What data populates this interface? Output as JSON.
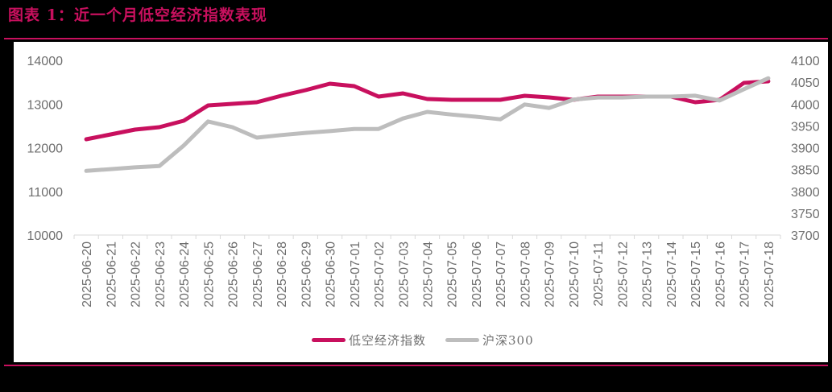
{
  "title": "图表 1：近一个月低空经济指数表现",
  "colors": {
    "accent": "#C8105E",
    "series_primary": "#C8105E",
    "series_secondary": "#BDBDBD",
    "axis_text": "#6E6E6E",
    "axis_line": "#D9D9D9"
  },
  "legend": {
    "items": [
      {
        "label": "低空经济指数",
        "color": "#C8105E"
      },
      {
        "label": "沪深300",
        "color": "#BDBDBD"
      }
    ]
  },
  "chart_data": {
    "type": "line",
    "title": "图表 1：近一个月低空经济指数表现",
    "xlabel": "",
    "ylabel": "",
    "y2label": "",
    "legend_position": "bottom",
    "grid": false,
    "ylim": [
      10000,
      14000
    ],
    "y_ticks": [
      10000,
      11000,
      12000,
      13000,
      14000
    ],
    "y2lim": [
      3700,
      4100
    ],
    "y2_ticks": [
      3700,
      3750,
      3800,
      3850,
      3900,
      3950,
      4000,
      4050,
      4100
    ],
    "categories": [
      "2025-06-20",
      "2025-06-21",
      "2025-06-22",
      "2025-06-23",
      "2025-06-24",
      "2025-06-25",
      "2025-06-26",
      "2025-06-27",
      "2025-06-28",
      "2025-06-29",
      "2025-06-30",
      "2025-07-01",
      "2025-07-02",
      "2025-07-03",
      "2025-07-04",
      "2025-07-05",
      "2025-07-06",
      "2025-07-07",
      "2025-07-08",
      "2025-07-09",
      "2025-07-10",
      "2025-07-11",
      "2025-07-12",
      "2025-07-13",
      "2025-07-14",
      "2025-07-15",
      "2025-07-16",
      "2025-07-17",
      "2025-07-18"
    ],
    "series": [
      {
        "name": "低空经济指数",
        "axis": "left",
        "color": "#C8105E",
        "values": [
          12193,
          12304,
          12415,
          12470,
          12617,
          12968,
          13005,
          13041,
          13189,
          13318,
          13465,
          13410,
          13170,
          13244,
          13115,
          13097,
          13097,
          13097,
          13189,
          13152,
          13097,
          13170,
          13170,
          13170,
          13170,
          13041,
          13097,
          13484,
          13521
        ]
      },
      {
        "name": "沪深300",
        "axis": "right",
        "color": "#BDBDBD",
        "values": [
          3847,
          3851,
          3855,
          3858,
          3905,
          3960,
          3947,
          3923,
          3929,
          3934,
          3938,
          3943,
          3943,
          3967,
          3982,
          3976,
          3971,
          3965,
          3999,
          3991,
          4010,
          4015,
          4015,
          4017,
          4017,
          4019,
          4008,
          4034,
          4059
        ]
      }
    ]
  }
}
